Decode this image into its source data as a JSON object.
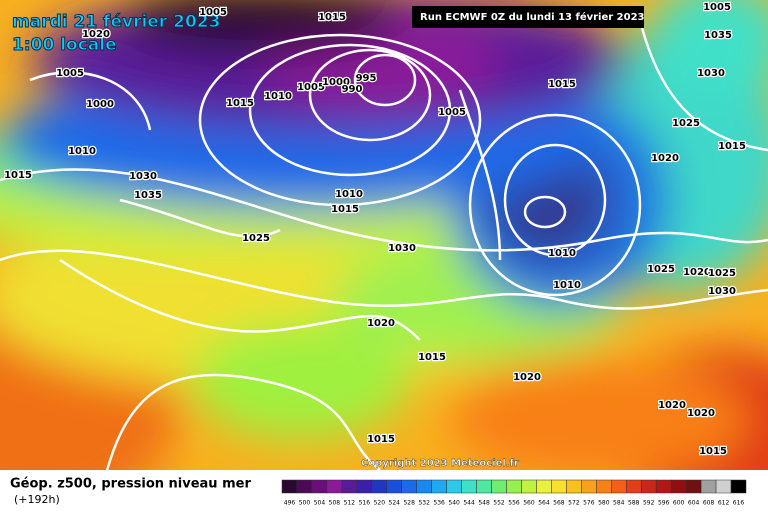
{
  "header": {
    "date": "mardi 21 février 2023",
    "time": "1:00 locale",
    "run": "Run ECMWF 0Z du lundi 13 février 2023"
  },
  "footer": {
    "title": "Géop. z500, pression niveau mer",
    "lead": "(+192h)",
    "copyright": "Copyright 2023 Meteociel.fr"
  },
  "isobar_labels": [
    "1005",
    "1015",
    "1020",
    "1005",
    "1000",
    "1015",
    "1010",
    "1005",
    "1000",
    "995",
    "990",
    "1005",
    "1015",
    "1030",
    "1035",
    "1005",
    "1025",
    "1020",
    "1015",
    "1010",
    "1015",
    "1030",
    "1035",
    "1010",
    "1015",
    "1025",
    "1030",
    "1010",
    "1010",
    "1025",
    "1020",
    "1025",
    "1030",
    "1020",
    "1015",
    "1020",
    "1020",
    "1020",
    "1015",
    "1015"
  ],
  "colorbar": {
    "ticks": [
      496,
      500,
      504,
      508,
      512,
      516,
      520,
      524,
      528,
      532,
      536,
      540,
      544,
      548,
      552,
      556,
      560,
      564,
      568,
      572,
      576,
      580,
      584,
      588,
      592,
      596,
      600,
      604,
      608,
      612,
      616
    ],
    "colors": [
      "#2a0830",
      "#4a0a55",
      "#6a0f7a",
      "#8a1a9a",
      "#5a1a9a",
      "#3a20a8",
      "#2038c0",
      "#1a50d8",
      "#1a6ae8",
      "#1a88f0",
      "#20a8f0",
      "#30c8e8",
      "#40e0c8",
      "#50e8a0",
      "#70ec70",
      "#98f050",
      "#c0f040",
      "#e8f040",
      "#f8e030",
      "#f8c020",
      "#f8a020",
      "#f88018",
      "#f06018",
      "#e04018",
      "#c82818",
      "#b01818",
      "#901010",
      "#701010",
      "#a0a0a0",
      "#d0d0d0",
      "#000000"
    ]
  }
}
